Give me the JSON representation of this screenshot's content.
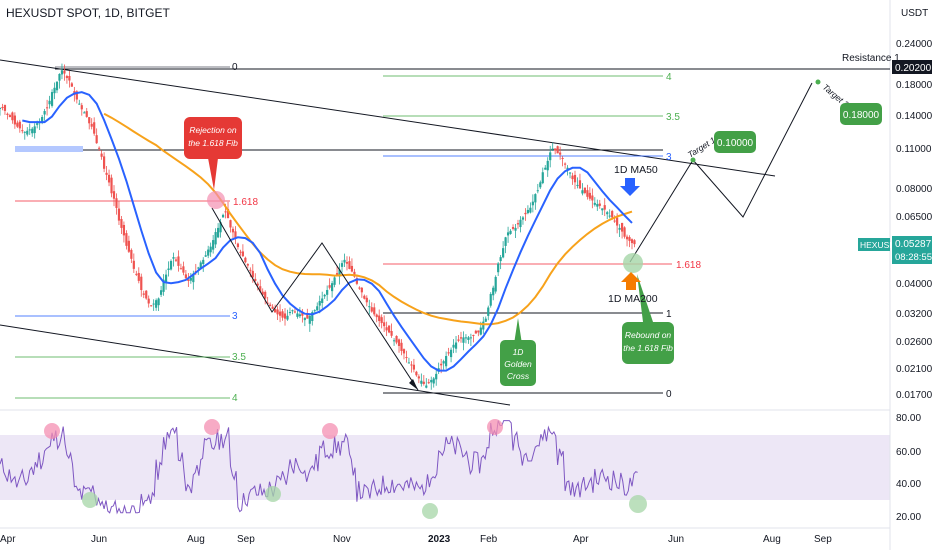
{
  "header": {
    "title": "HEXUSDT SPOT, 1D, BITGET"
  },
  "chart_data": {
    "type": "candlestick",
    "symbol": "HEXUSDT",
    "currency": "USDT",
    "y_ticks": [
      "0.24000",
      "0.20200",
      "0.18000",
      "0.14000",
      "0.11000",
      "0.08000",
      "0.06500",
      "0.05287",
      "0.04000",
      "0.03200",
      "0.02600",
      "0.02100",
      "0.01700"
    ],
    "x_ticks": [
      "Apr",
      "Jun",
      "Aug",
      "Sep",
      "Nov",
      "2023",
      "Feb",
      "Apr",
      "Jun",
      "Aug",
      "Sep"
    ],
    "rsi_ticks": [
      "80.00",
      "60.00",
      "40.00",
      "20.00"
    ],
    "last_price": "0.05287",
    "countdown": "08:28:55",
    "resistance": {
      "label": "Resistance 1",
      "value": "0.20200"
    },
    "fib_left": [
      "0",
      "1.618",
      "3",
      "3.5",
      "4"
    ],
    "fib_right": [
      "4",
      "3.5",
      "3",
      "1.618",
      "1",
      "0"
    ],
    "targets": [
      {
        "name": "Target 1",
        "value": "0.10000"
      },
      {
        "name": "Target 2",
        "value": "0.18000"
      }
    ],
    "annotations": {
      "rejection": [
        "Rejection on",
        "the 1.618 Fib"
      ],
      "golden_cross": [
        "1D",
        "Golden",
        "Cross"
      ],
      "rebound": [
        "Rebound on",
        "the 1.618 Fib"
      ],
      "ma50": "1D MA50",
      "ma200": "1D MA200"
    },
    "price_series_close": [
      0.15,
      0.14,
      0.13,
      0.125,
      0.128,
      0.135,
      0.15,
      0.175,
      0.2,
      0.185,
      0.16,
      0.145,
      0.13,
      0.11,
      0.09,
      0.075,
      0.06,
      0.05,
      0.042,
      0.036,
      0.033,
      0.035,
      0.042,
      0.048,
      0.044,
      0.04,
      0.043,
      0.047,
      0.052,
      0.06,
      0.068,
      0.058,
      0.05,
      0.045,
      0.04,
      0.036,
      0.033,
      0.031,
      0.03,
      0.032,
      0.031,
      0.03,
      0.032,
      0.035,
      0.038,
      0.042,
      0.047,
      0.043,
      0.038,
      0.034,
      0.031,
      0.029,
      0.027,
      0.025,
      0.023,
      0.021,
      0.019,
      0.018,
      0.019,
      0.021,
      0.023,
      0.025,
      0.026,
      0.026,
      0.027,
      0.03,
      0.038,
      0.048,
      0.058,
      0.06,
      0.065,
      0.07,
      0.08,
      0.095,
      0.11,
      0.105,
      0.095,
      0.085,
      0.08,
      0.075,
      0.072,
      0.069,
      0.065,
      0.06,
      0.055,
      0.053
    ],
    "ma50_label": "1D MA50",
    "ma200_label": "1D MA200",
    "rsi_levels": {
      "upper": 70,
      "lower": 30
    },
    "colors": {
      "up": "#26a69a",
      "down": "#ef5350",
      "ma50": "#2962ff",
      "ma200": "#f7a21b",
      "rsi": "#7e57c2",
      "price_tag": "#26a69a"
    }
  }
}
